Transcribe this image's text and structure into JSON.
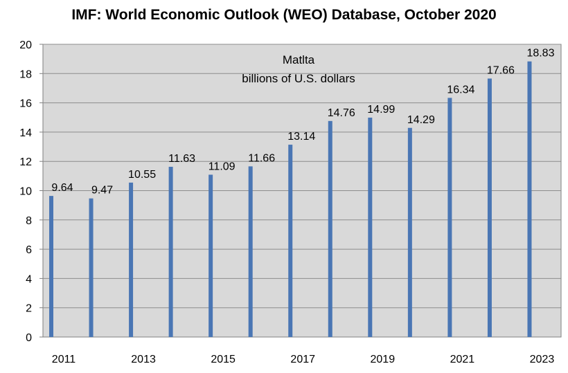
{
  "chart_data": {
    "type": "bar",
    "title": "IMF: World Economic Outlook (WEO) Database, October 2020",
    "subtitle_lines": [
      "Matlta",
      "billions of U.S. dollars"
    ],
    "categories": [
      "2011",
      "2012",
      "2013",
      "2014",
      "2015",
      "2016",
      "2017",
      "2018",
      "2019",
      "2020",
      "2021",
      "2022",
      "2023"
    ],
    "x_tick_labels": [
      "2011",
      "",
      "2013",
      "",
      "2015",
      "",
      "2017",
      "",
      "2019",
      "",
      "2021",
      "",
      "2023"
    ],
    "values": [
      9.64,
      9.47,
      10.55,
      11.63,
      11.09,
      11.66,
      13.14,
      14.76,
      14.99,
      14.29,
      16.34,
      17.66,
      18.83
    ],
    "data_labels": [
      "9.64",
      "9.47",
      "10.55",
      "11.63",
      "11.09",
      "11.66",
      "13.14",
      "14.76",
      "14.99",
      "14.29",
      "16.34",
      "17.66",
      "18.83"
    ],
    "y_ticks": [
      "0",
      "2",
      "4",
      "6",
      "8",
      "10",
      "12",
      "14",
      "16",
      "18",
      "20"
    ],
    "ylim": [
      0,
      20
    ],
    "xlabel": "",
    "ylabel": "",
    "grid": true,
    "colors": {
      "bar": "#4a76b4",
      "plot_background": "#d9d9d9",
      "gridline": "#8c8c8c"
    }
  }
}
